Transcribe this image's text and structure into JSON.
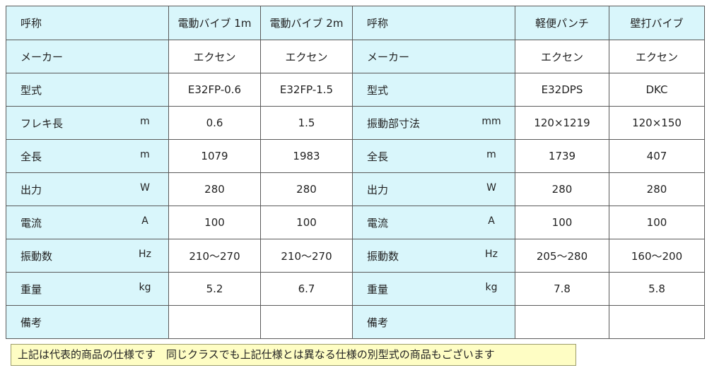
{
  "left": {
    "header": {
      "label": "呼称",
      "col1": "電動バイブ 1m",
      "col2": "電動バイブ 2m"
    },
    "rows": [
      {
        "label": "メーカー",
        "unit": "",
        "v1": "エクセン",
        "v2": "エクセン"
      },
      {
        "label": "型式",
        "unit": "",
        "v1": "E32FP-0.6",
        "v2": "E32FP-1.5"
      },
      {
        "label": "フレキ長",
        "unit": "m",
        "v1": "0.6",
        "v2": "1.5"
      },
      {
        "label": "全長",
        "unit": "m",
        "v1": "1079",
        "v2": "1983"
      },
      {
        "label": "出力",
        "unit": "W",
        "v1": "280",
        "v2": "280"
      },
      {
        "label": "電流",
        "unit": "A",
        "v1": "100",
        "v2": "100"
      },
      {
        "label": "振動数",
        "unit": "Hz",
        "v1": "210〜270",
        "v2": "210〜270"
      },
      {
        "label": "重量",
        "unit": "kg",
        "v1": "5.2",
        "v2": "6.7"
      },
      {
        "label": "備考",
        "unit": "",
        "v1": "",
        "v2": ""
      }
    ]
  },
  "right": {
    "header": {
      "label": "呼称",
      "col1": "軽便パンチ",
      "col2": "壁打バイブ"
    },
    "rows": [
      {
        "label": "メーカー",
        "unit": "",
        "v1": "エクセン",
        "v2": "エクセン"
      },
      {
        "label": "型式",
        "unit": "",
        "v1": "E32DPS",
        "v2": "DKC"
      },
      {
        "label": "振動部寸法",
        "unit": "mm",
        "v1": "120×1219",
        "v2": "120×150"
      },
      {
        "label": "全長",
        "unit": "m",
        "v1": "1739",
        "v2": "407"
      },
      {
        "label": "出力",
        "unit": "W",
        "v1": "280",
        "v2": "280"
      },
      {
        "label": "電流",
        "unit": "A",
        "v1": "100",
        "v2": "100"
      },
      {
        "label": "振動数",
        "unit": "Hz",
        "v1": "205〜280",
        "v2": "160〜200"
      },
      {
        "label": "重量",
        "unit": "kg",
        "v1": "7.8",
        "v2": "5.8"
      },
      {
        "label": "備考",
        "unit": "",
        "v1": "",
        "v2": ""
      }
    ]
  },
  "note": "上記は代表的商品の仕様です　同じクラスでも上記仕様とは異なる仕様の別型式の商品もございます"
}
